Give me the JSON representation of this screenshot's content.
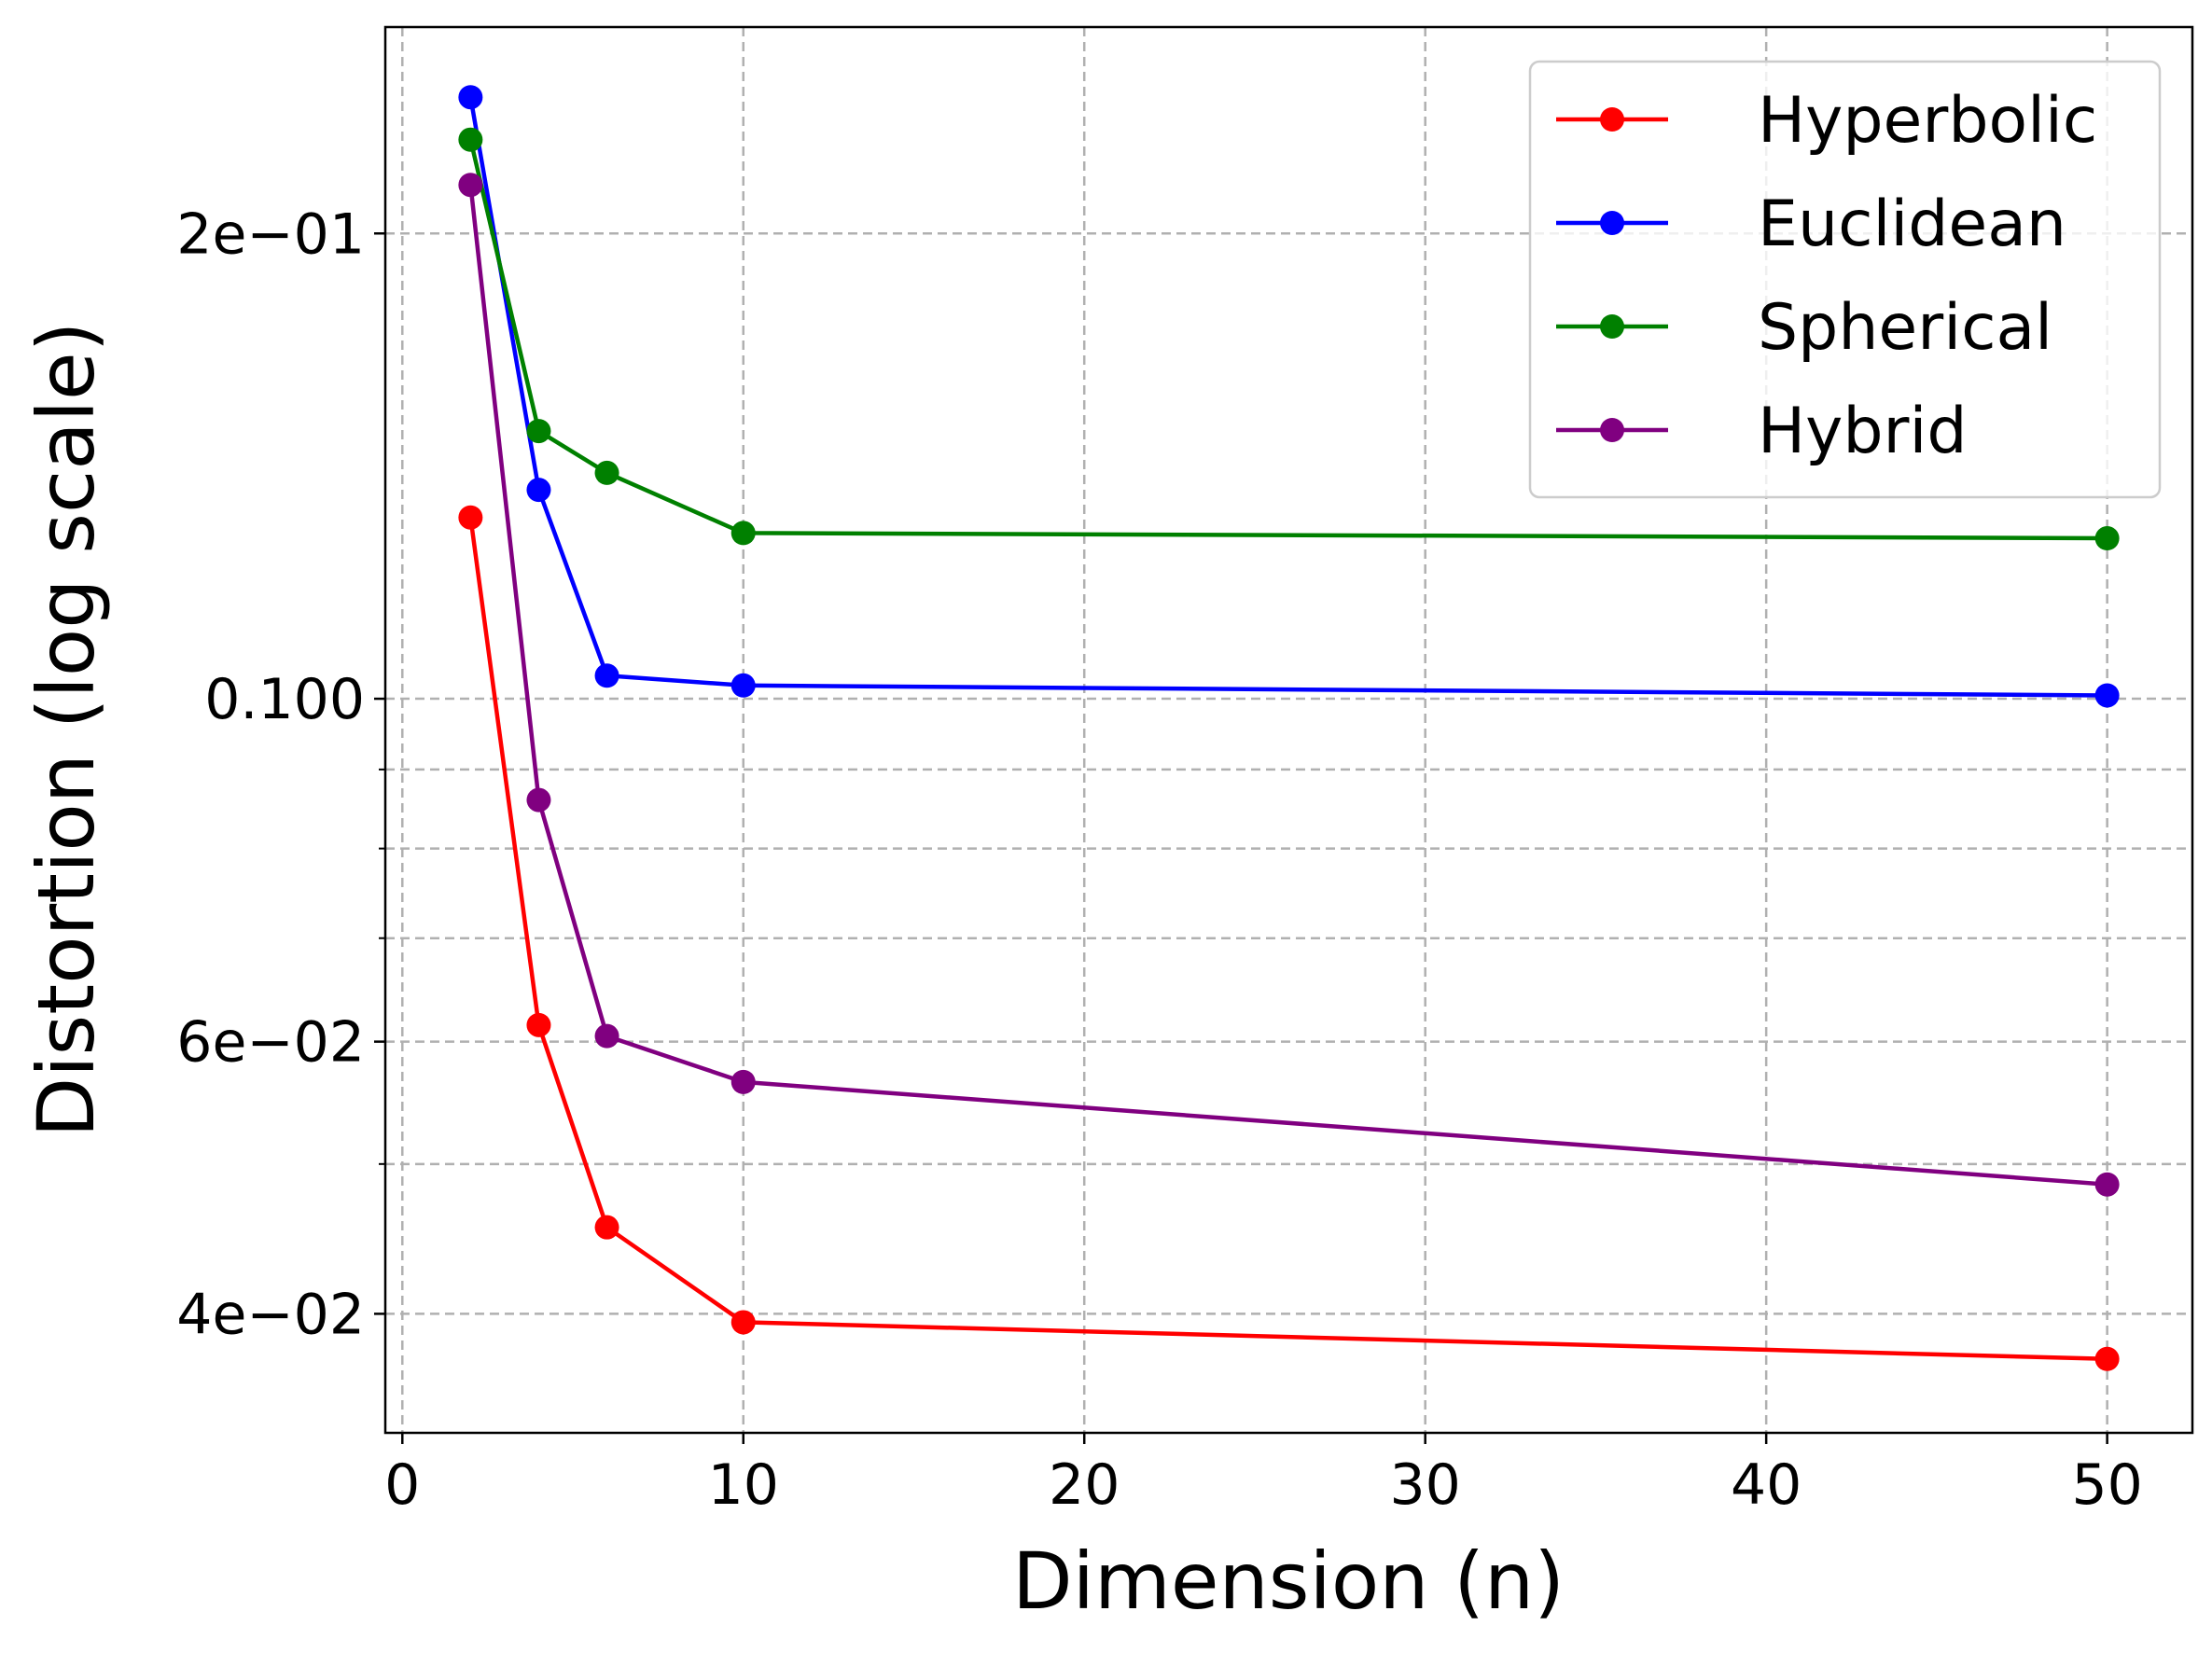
{
  "chart_data": {
    "type": "line",
    "title": "",
    "xlabel": "Dimension (n)",
    "ylabel": "Distortion (log scale)",
    "yscale": "log",
    "grid": true,
    "legend_position": "top-right",
    "x": [
      2,
      4,
      6,
      10,
      50
    ],
    "xlim": [
      -0.5,
      52.5
    ],
    "ylim": [
      0.0335,
      0.272
    ],
    "x_ticks": [
      0,
      10,
      20,
      30,
      40,
      50
    ],
    "x_tick_labels": [
      "0",
      "10",
      "20",
      "30",
      "40",
      "50"
    ],
    "y_major_ticks": [
      0.04,
      0.06,
      0.1,
      0.2
    ],
    "y_major_tick_labels": [
      "4e−02",
      "6e−02",
      "0.100",
      "2e−01"
    ],
    "y_minor_ticks": [
      0.05,
      0.07,
      0.08,
      0.09
    ],
    "series": [
      {
        "name": "Hyperbolic",
        "color": "#ff0000",
        "values": [
          0.131,
          0.0615,
          0.0455,
          0.0395,
          0.0374
        ]
      },
      {
        "name": "Euclidean",
        "color": "#0000ff",
        "values": [
          0.245,
          0.1365,
          0.1035,
          0.102,
          0.1005
        ]
      },
      {
        "name": "Spherical",
        "color": "#008000",
        "values": [
          0.23,
          0.149,
          0.14,
          0.128,
          0.127
        ]
      },
      {
        "name": "Hybrid",
        "color": "#800080",
        "values": [
          0.215,
          0.086,
          0.0605,
          0.0565,
          0.0485
        ]
      }
    ]
  }
}
